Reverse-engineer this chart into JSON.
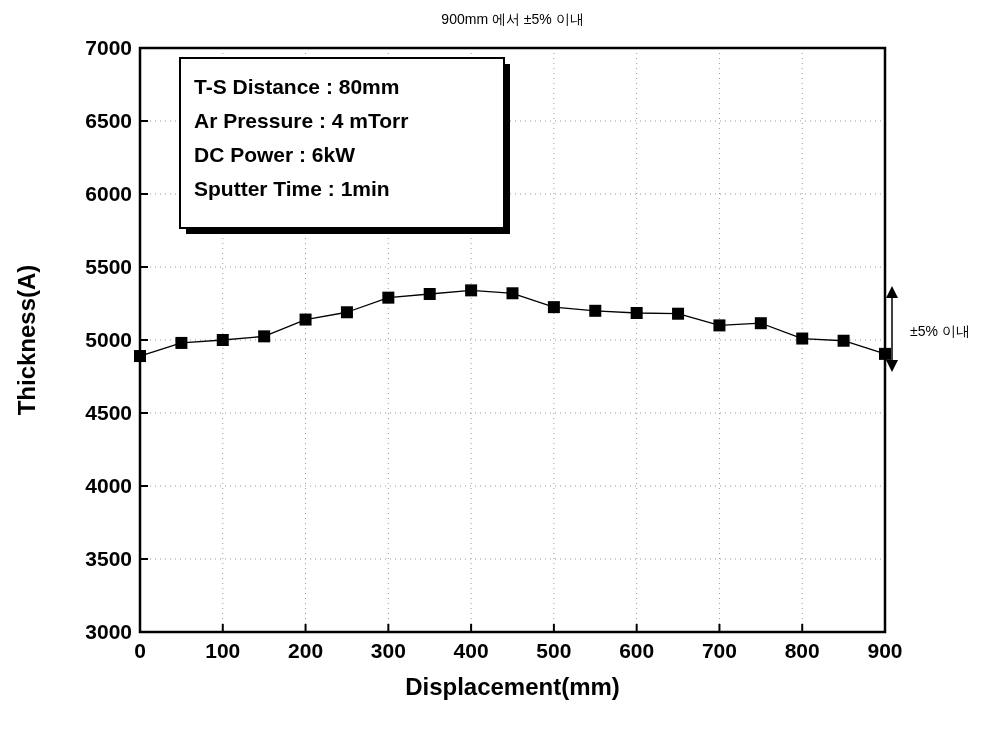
{
  "chart_data": {
    "type": "line",
    "title": "900mm 에서 ±5% 이내",
    "xlabel": "Displacement(mm)",
    "ylabel": "Thickness(A)",
    "x": [
      0,
      50,
      100,
      150,
      200,
      250,
      300,
      350,
      400,
      450,
      500,
      550,
      600,
      650,
      700,
      750,
      800,
      850,
      900
    ],
    "series": [
      {
        "color": "#000000",
        "values": [
          4890,
          4980,
          5000,
          5025,
          5140,
          5190,
          5290,
          5315,
          5340,
          5320,
          5225,
          5200,
          5185,
          5180,
          5100,
          5115,
          5010,
          4995,
          4905
        ]
      }
    ],
    "xlim": [
      0,
      900
    ],
    "xticks": [
      0,
      100,
      200,
      300,
      400,
      500,
      600,
      700,
      800,
      900
    ],
    "ylim": [
      3000,
      7000
    ],
    "yticks": [
      3000,
      3500,
      4000,
      4500,
      5000,
      5500,
      6000,
      6500,
      7000
    ],
    "grid": true,
    "marker": "square",
    "line_style": "solid",
    "annotations": [
      "T-S Distance : 80mm",
      "Ar Pressure : 4 mTorr",
      "DC Power : 6kW",
      "Sputter Time : 1min",
      "±5% 이내"
    ]
  }
}
